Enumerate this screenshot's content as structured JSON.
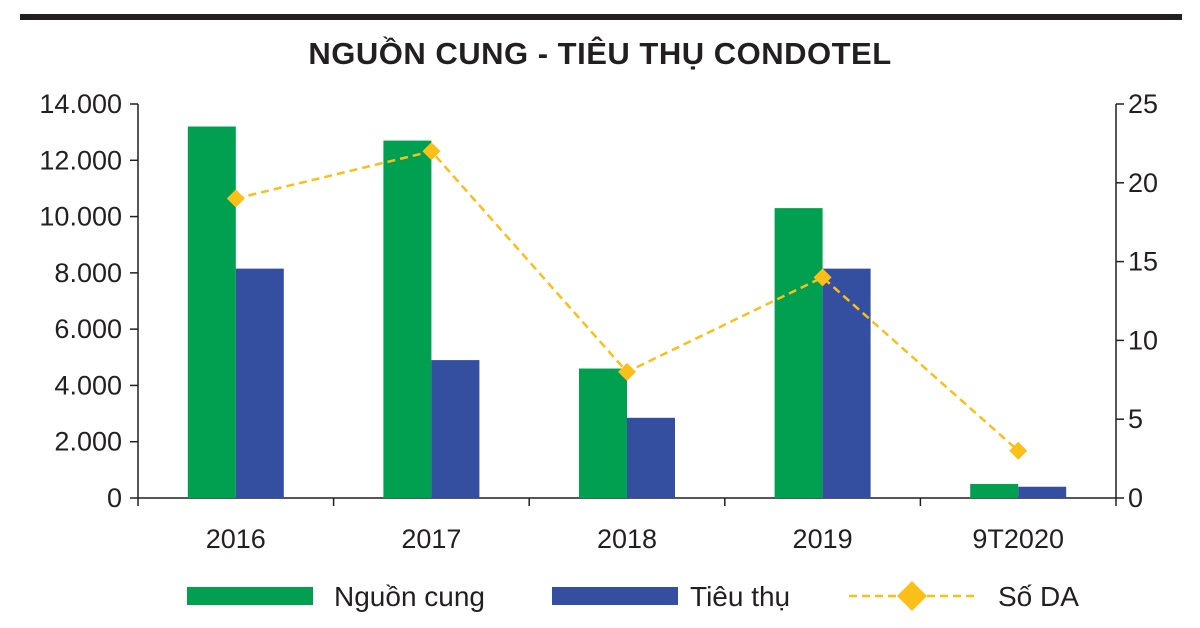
{
  "chart_data": {
    "type": "bar",
    "title": "NGUỒN CUNG - TIÊU THỤ CONDOTEL",
    "categories": [
      "2016",
      "2017",
      "2018",
      "2019",
      "9T2020"
    ],
    "series": [
      {
        "name": "Nguồn cung",
        "type": "bar",
        "axis": "left",
        "color": "#00a050",
        "values": [
          13200,
          12700,
          4600,
          10300,
          500
        ]
      },
      {
        "name": "Tiêu thụ",
        "type": "bar",
        "axis": "left",
        "color": "#344ea0",
        "values": [
          8150,
          4900,
          2850,
          8150,
          400
        ]
      },
      {
        "name": "Số DA",
        "type": "line",
        "axis": "right",
        "color": "#fbbf1a",
        "style": "dashed",
        "marker": "diamond",
        "values": [
          19,
          22,
          8,
          14,
          3
        ]
      }
    ],
    "left_axis": {
      "ylim": [
        0,
        14000
      ],
      "ticks": [
        0,
        2000,
        4000,
        6000,
        8000,
        10000,
        12000,
        14000
      ],
      "tick_labels": [
        "0",
        "2.000",
        "4.000",
        "6.000",
        "8.000",
        "10.000",
        "12.000",
        "14.000"
      ]
    },
    "right_axis": {
      "ylim": [
        0,
        25
      ],
      "ticks": [
        0,
        5,
        10,
        15,
        20,
        25
      ],
      "tick_labels": [
        "0",
        "5",
        "10",
        "15",
        "20",
        "25"
      ]
    },
    "grid": false,
    "legend_position": "bottom"
  }
}
